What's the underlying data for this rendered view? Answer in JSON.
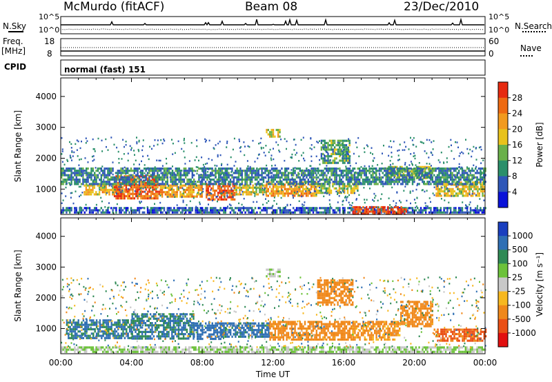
{
  "header": {
    "station": "McMurdo (fitACF)",
    "beam": "Beam 08",
    "date": "23/Dec/2010"
  },
  "top_panels": {
    "nsky_label": "N.Sky",
    "nsky_ticks": [
      "10^5",
      "10^0"
    ],
    "nsearch_label": "N.Search",
    "nsearch_ticks": [
      "10^5",
      "10^0"
    ],
    "freq_label": "Freq.",
    "freq_unit": "[MHz]",
    "freq_ticks": [
      "18",
      "8"
    ],
    "nave_label": "Nave",
    "nave_ticks": [
      "60",
      "0"
    ],
    "cpid_label": "CPID",
    "cpid_value": "normal (fast) 151"
  },
  "chart_data": [
    {
      "type": "heatmap",
      "name": "power-panel",
      "ylabel": "Slant Range [km]",
      "ylim": [
        180,
        4600
      ],
      "yticks": [
        "1000",
        "2000",
        "3000",
        "4000"
      ],
      "xlim": [
        0,
        24
      ],
      "colorbar_label": "Power [dB]",
      "colorbar_ticks": [
        "4",
        "8",
        "12",
        "16",
        "20",
        "24",
        "28"
      ],
      "colorbar_colors": [
        "#0a12d8",
        "#2f57b8",
        "#2a8f6a",
        "#6ab04a",
        "#e8c21c",
        "#f29a1e",
        "#ee6a12",
        "#e62a10"
      ],
      "colorbar_range": [
        0,
        32
      ],
      "bands": [
        {
          "t0": 0.0,
          "t1": 24.0,
          "r0": 230,
          "r1": 420,
          "v": 6
        },
        {
          "t0": 1.3,
          "t1": 3.6,
          "r0": 800,
          "r1": 1150,
          "v": 20
        },
        {
          "t0": 3.0,
          "t1": 5.6,
          "r0": 700,
          "r1": 1450,
          "v": 26
        },
        {
          "t0": 5.6,
          "t1": 8.0,
          "r0": 750,
          "r1": 1150,
          "v": 22
        },
        {
          "t0": 8.2,
          "t1": 9.8,
          "r0": 650,
          "r1": 1200,
          "v": 28
        },
        {
          "t0": 9.8,
          "t1": 11.6,
          "r0": 800,
          "r1": 1150,
          "v": 18
        },
        {
          "t0": 11.6,
          "t1": 14.5,
          "r0": 750,
          "r1": 1250,
          "v": 22
        },
        {
          "t0": 14.5,
          "t1": 16.8,
          "r0": 900,
          "r1": 1200,
          "v": 16
        },
        {
          "t0": 16.5,
          "t1": 19.5,
          "r0": 230,
          "r1": 450,
          "v": 29
        },
        {
          "t0": 18.5,
          "t1": 21.0,
          "r0": 1350,
          "r1": 1750,
          "v": 16
        },
        {
          "t0": 21.2,
          "t1": 24.0,
          "r0": 800,
          "r1": 1250,
          "v": 18
        },
        {
          "t0": 0.0,
          "t1": 24.0,
          "r0": 1150,
          "r1": 1700,
          "v": 9
        },
        {
          "t0": 11.6,
          "t1": 12.4,
          "r0": 2700,
          "r1": 2950,
          "v": 18
        },
        {
          "t0": 14.7,
          "t1": 16.3,
          "r0": 1850,
          "r1": 2600,
          "v": 12
        }
      ]
    },
    {
      "type": "heatmap",
      "name": "velocity-panel",
      "ylabel": "Slant Range [km]",
      "ylim": [
        180,
        4600
      ],
      "yticks": [
        "1000",
        "2000",
        "3000",
        "4000"
      ],
      "xlim": [
        0,
        24
      ],
      "xlabel": "Time UT",
      "xticks": [
        "00:00",
        "04:00",
        "08:00",
        "12:00",
        "16:00",
        "20:00",
        "00:00"
      ],
      "colorbar_label": "Velocity [m s⁻¹]",
      "colorbar_ticks": [
        "1000",
        "500",
        "100",
        "25",
        "-25",
        "-100",
        "-500",
        "-1000"
      ],
      "colorbar_colors": [
        "#1a3fbf",
        "#2f6fb4",
        "#2f8a55",
        "#6cc23a",
        "#c8c8c8",
        "#f7b820",
        "#f0881a",
        "#ea5016",
        "#e21010"
      ],
      "bands": [
        {
          "t0": 0.0,
          "t1": 24.0,
          "r0": 230,
          "r1": 420,
          "v": 0
        },
        {
          "t0": 0.3,
          "t1": 4.0,
          "r0": 700,
          "r1": 1300,
          "v": 120
        },
        {
          "t0": 4.0,
          "t1": 7.5,
          "r0": 700,
          "r1": 1500,
          "v": 110
        },
        {
          "t0": 7.5,
          "t1": 9.0,
          "r0": 650,
          "r1": 1200,
          "v": 300
        },
        {
          "t0": 9.0,
          "t1": 11.8,
          "r0": 700,
          "r1": 1200,
          "v": 150
        },
        {
          "t0": 11.8,
          "t1": 16.5,
          "r0": 650,
          "r1": 1250,
          "v": -300
        },
        {
          "t0": 16.5,
          "t1": 19.2,
          "r0": 650,
          "r1": 1250,
          "v": -150
        },
        {
          "t0": 19.2,
          "t1": 21.0,
          "r0": 1100,
          "r1": 1900,
          "v": -300
        },
        {
          "t0": 21.0,
          "t1": 24.0,
          "r0": 600,
          "r1": 1000,
          "v": -600
        },
        {
          "t0": 14.5,
          "t1": 16.5,
          "r0": 1800,
          "r1": 2600,
          "v": -300
        },
        {
          "t0": 11.6,
          "t1": 12.4,
          "r0": 2700,
          "r1": 2950,
          "v": 0
        }
      ]
    }
  ]
}
